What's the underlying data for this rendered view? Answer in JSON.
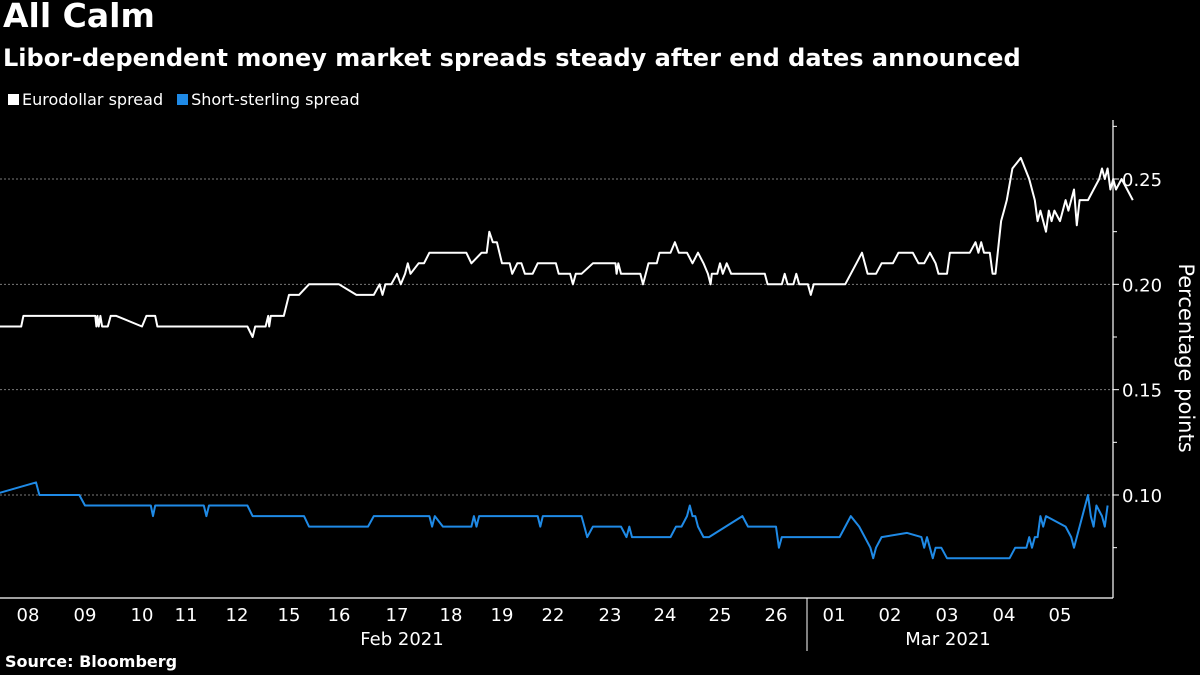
{
  "title": "All Calm",
  "subtitle": "Libor-dependent money market spreads steady after end dates announced",
  "source": "Source: Bloomberg",
  "colors": {
    "background": "#000000",
    "eurodollar": "#ffffff",
    "sterling": "#1f8ae6",
    "grid": "#888888"
  },
  "chart_data": {
    "type": "line",
    "title": "All Calm",
    "subtitle": "Libor-dependent money market spreads steady after end dates announced",
    "xlabel": "",
    "ylabel": "Percentage points",
    "ylim": [
      0.045,
      0.275
    ],
    "y_ticks": [
      0.1,
      0.15,
      0.2,
      0.25
    ],
    "y_tick_labels": [
      "0.10",
      "0.15",
      "0.20",
      "0.25"
    ],
    "y_axis_side": "right",
    "grid": "horizontal dotted",
    "legend": {
      "placement": "top-left",
      "entries": [
        "Eurodollar spread",
        "Short-sterling spread"
      ]
    },
    "x_tick_labels": [
      "08",
      "09",
      "10",
      "11",
      "12",
      "15",
      "16",
      "17",
      "18",
      "19",
      "22",
      "23",
      "24",
      "25",
      "26",
      "01",
      "02",
      "03",
      "04",
      "05"
    ],
    "x_groups": [
      {
        "label": "Feb 2021",
        "from": 0,
        "to": 14
      },
      {
        "label": "Mar 2021",
        "from": 15,
        "to": 19
      }
    ],
    "x_note": "x values are trading-day index: 0 = Feb 08 ... 14 = Feb 26, 15 = Mar 01 ... 19 = Mar 05",
    "series": [
      {
        "name": "Eurodollar spread",
        "color": "#ffffff",
        "points": [
          [
            -0.5,
            0.18
          ],
          [
            -0.12,
            0.18
          ],
          [
            -0.08,
            0.185
          ],
          [
            1.0,
            0.185
          ],
          [
            1.18,
            0.185
          ],
          [
            1.2,
            0.18
          ],
          [
            1.22,
            0.185
          ],
          [
            1.24,
            0.18
          ],
          [
            1.27,
            0.185
          ],
          [
            1.3,
            0.18
          ],
          [
            1.4,
            0.18
          ],
          [
            1.45,
            0.185
          ],
          [
            1.55,
            0.185
          ],
          [
            2.0,
            0.18
          ],
          [
            2.1,
            0.185
          ],
          [
            2.3,
            0.185
          ],
          [
            2.35,
            0.18
          ],
          [
            4.2,
            0.18
          ],
          [
            4.3,
            0.175
          ],
          [
            4.35,
            0.18
          ],
          [
            4.55,
            0.18
          ],
          [
            4.6,
            0.185
          ],
          [
            4.62,
            0.18
          ],
          [
            4.65,
            0.185
          ],
          [
            4.9,
            0.185
          ],
          [
            5.0,
            0.195
          ],
          [
            5.2,
            0.195
          ],
          [
            5.4,
            0.2
          ],
          [
            6.0,
            0.2
          ],
          [
            6.3,
            0.195
          ],
          [
            6.6,
            0.195
          ],
          [
            6.7,
            0.2
          ],
          [
            6.75,
            0.195
          ],
          [
            6.8,
            0.2
          ],
          [
            6.9,
            0.2
          ],
          [
            7.0,
            0.205
          ],
          [
            7.07,
            0.2
          ],
          [
            7.15,
            0.205
          ],
          [
            7.2,
            0.21
          ],
          [
            7.25,
            0.205
          ],
          [
            7.4,
            0.21
          ],
          [
            7.5,
            0.21
          ],
          [
            7.6,
            0.215
          ],
          [
            8.3,
            0.215
          ],
          [
            8.4,
            0.21
          ],
          [
            8.6,
            0.215
          ],
          [
            8.7,
            0.215
          ],
          [
            8.75,
            0.225
          ],
          [
            8.82,
            0.22
          ],
          [
            8.9,
            0.22
          ],
          [
            9.0,
            0.21
          ],
          [
            9.15,
            0.21
          ],
          [
            9.2,
            0.205
          ],
          [
            9.3,
            0.21
          ],
          [
            9.38,
            0.21
          ],
          [
            9.45,
            0.205
          ],
          [
            9.6,
            0.205
          ],
          [
            9.7,
            0.21
          ],
          [
            10.05,
            0.21
          ],
          [
            10.1,
            0.205
          ],
          [
            10.15,
            0.205
          ],
          [
            10.3,
            0.205
          ],
          [
            10.35,
            0.2
          ],
          [
            10.4,
            0.205
          ],
          [
            10.5,
            0.205
          ],
          [
            10.7,
            0.21
          ],
          [
            11.1,
            0.21
          ],
          [
            11.12,
            0.205
          ],
          [
            11.15,
            0.21
          ],
          [
            11.2,
            0.205
          ],
          [
            11.55,
            0.205
          ],
          [
            11.6,
            0.2
          ],
          [
            11.65,
            0.205
          ],
          [
            11.7,
            0.21
          ],
          [
            11.85,
            0.21
          ],
          [
            11.9,
            0.215
          ],
          [
            12.1,
            0.215
          ],
          [
            12.18,
            0.22
          ],
          [
            12.25,
            0.215
          ],
          [
            12.4,
            0.215
          ],
          [
            12.5,
            0.21
          ],
          [
            12.6,
            0.215
          ],
          [
            12.7,
            0.21
          ],
          [
            12.78,
            0.205
          ],
          [
            12.83,
            0.2
          ],
          [
            12.85,
            0.205
          ],
          [
            12.95,
            0.205
          ],
          [
            13.0,
            0.21
          ],
          [
            13.05,
            0.205
          ],
          [
            13.12,
            0.21
          ],
          [
            13.2,
            0.205
          ],
          [
            13.8,
            0.205
          ],
          [
            13.85,
            0.2
          ],
          [
            14.0,
            0.2
          ],
          [
            14.1,
            0.2
          ],
          [
            14.15,
            0.205
          ],
          [
            14.2,
            0.2
          ],
          [
            14.3,
            0.2
          ],
          [
            14.35,
            0.205
          ],
          [
            14.4,
            0.2
          ],
          [
            14.55,
            0.2
          ],
          [
            14.6,
            0.195
          ],
          [
            14.65,
            0.2
          ],
          [
            15.2,
            0.2
          ],
          [
            15.3,
            0.205
          ],
          [
            15.4,
            0.21
          ],
          [
            15.5,
            0.215
          ],
          [
            15.55,
            0.21
          ],
          [
            15.6,
            0.205
          ],
          [
            15.75,
            0.205
          ],
          [
            15.85,
            0.21
          ],
          [
            16.05,
            0.21
          ],
          [
            16.15,
            0.215
          ],
          [
            16.4,
            0.215
          ],
          [
            16.5,
            0.21
          ],
          [
            16.6,
            0.21
          ],
          [
            16.7,
            0.215
          ],
          [
            16.8,
            0.21
          ],
          [
            16.85,
            0.205
          ],
          [
            17.0,
            0.205
          ],
          [
            17.05,
            0.215
          ],
          [
            17.2,
            0.215
          ],
          [
            17.4,
            0.215
          ],
          [
            17.5,
            0.22
          ],
          [
            17.55,
            0.215
          ],
          [
            17.6,
            0.22
          ],
          [
            17.65,
            0.215
          ],
          [
            17.75,
            0.215
          ],
          [
            17.8,
            0.205
          ],
          [
            17.85,
            0.205
          ],
          [
            17.95,
            0.23
          ],
          [
            18.0,
            0.235
          ],
          [
            18.05,
            0.24
          ],
          [
            18.15,
            0.255
          ],
          [
            18.3,
            0.26
          ],
          [
            18.45,
            0.25
          ],
          [
            18.55,
            0.24
          ],
          [
            18.6,
            0.23
          ],
          [
            18.65,
            0.235
          ],
          [
            18.7,
            0.23
          ],
          [
            18.75,
            0.225
          ],
          [
            18.8,
            0.235
          ],
          [
            18.85,
            0.23
          ],
          [
            18.9,
            0.235
          ],
          [
            19.0,
            0.23
          ],
          [
            19.05,
            0.235
          ],
          [
            19.1,
            0.24
          ],
          [
            19.15,
            0.235
          ],
          [
            19.2,
            0.24
          ],
          [
            19.25,
            0.245
          ],
          [
            19.3,
            0.228
          ],
          [
            19.35,
            0.24
          ],
          [
            19.5,
            0.24
          ],
          [
            19.6,
            0.245
          ],
          [
            19.7,
            0.25
          ],
          [
            19.75,
            0.255
          ],
          [
            19.8,
            0.25
          ],
          [
            19.85,
            0.255
          ],
          [
            19.9,
            0.245
          ],
          [
            19.95,
            0.25
          ],
          [
            20.0,
            0.245
          ],
          [
            20.1,
            0.25
          ],
          [
            20.2,
            0.245
          ],
          [
            20.3,
            0.24
          ]
        ]
      },
      {
        "name": "Short-sterling spread",
        "color": "#1f8ae6",
        "points": [
          [
            -0.5,
            0.101
          ],
          [
            0.14,
            0.106
          ],
          [
            0.2,
            0.1
          ],
          [
            0.9,
            0.1
          ],
          [
            1.0,
            0.095
          ],
          [
            2.2,
            0.095
          ],
          [
            2.25,
            0.09
          ],
          [
            2.3,
            0.095
          ],
          [
            3.35,
            0.095
          ],
          [
            3.4,
            0.09
          ],
          [
            3.45,
            0.095
          ],
          [
            4.2,
            0.095
          ],
          [
            4.3,
            0.09
          ],
          [
            5.3,
            0.09
          ],
          [
            5.4,
            0.085
          ],
          [
            6.5,
            0.085
          ],
          [
            6.6,
            0.09
          ],
          [
            7.6,
            0.09
          ],
          [
            7.65,
            0.085
          ],
          [
            7.7,
            0.09
          ],
          [
            7.85,
            0.085
          ],
          [
            8.4,
            0.085
          ],
          [
            8.45,
            0.09
          ],
          [
            8.5,
            0.085
          ],
          [
            8.55,
            0.09
          ],
          [
            9.7,
            0.09
          ],
          [
            9.75,
            0.085
          ],
          [
            9.8,
            0.09
          ],
          [
            10.5,
            0.09
          ],
          [
            10.55,
            0.085
          ],
          [
            10.6,
            0.08
          ],
          [
            10.7,
            0.085
          ],
          [
            11.1,
            0.085
          ],
          [
            11.2,
            0.085
          ],
          [
            11.3,
            0.08
          ],
          [
            11.35,
            0.085
          ],
          [
            11.4,
            0.08
          ],
          [
            12.1,
            0.08
          ],
          [
            12.2,
            0.085
          ],
          [
            12.3,
            0.085
          ],
          [
            12.4,
            0.09
          ],
          [
            12.45,
            0.095
          ],
          [
            12.5,
            0.09
          ],
          [
            12.55,
            0.09
          ],
          [
            12.6,
            0.085
          ],
          [
            12.7,
            0.08
          ],
          [
            12.8,
            0.08
          ],
          [
            13.4,
            0.09
          ],
          [
            13.5,
            0.085
          ],
          [
            14.0,
            0.085
          ],
          [
            14.05,
            0.075
          ],
          [
            14.1,
            0.08
          ],
          [
            15.1,
            0.08
          ],
          [
            15.2,
            0.085
          ],
          [
            15.3,
            0.09
          ],
          [
            15.45,
            0.085
          ],
          [
            15.55,
            0.08
          ],
          [
            15.65,
            0.075
          ],
          [
            15.7,
            0.07
          ],
          [
            15.75,
            0.075
          ],
          [
            15.85,
            0.08
          ],
          [
            16.3,
            0.082
          ],
          [
            16.55,
            0.08
          ],
          [
            16.6,
            0.075
          ],
          [
            16.65,
            0.08
          ],
          [
            16.7,
            0.075
          ],
          [
            16.75,
            0.07
          ],
          [
            16.8,
            0.075
          ],
          [
            16.9,
            0.075
          ],
          [
            17.0,
            0.07
          ],
          [
            18.1,
            0.07
          ],
          [
            18.2,
            0.075
          ],
          [
            18.4,
            0.075
          ],
          [
            18.45,
            0.08
          ],
          [
            18.5,
            0.075
          ],
          [
            18.55,
            0.08
          ],
          [
            18.6,
            0.08
          ],
          [
            18.65,
            0.09
          ],
          [
            18.7,
            0.085
          ],
          [
            18.75,
            0.09
          ],
          [
            19.1,
            0.085
          ],
          [
            19.2,
            0.08
          ],
          [
            19.25,
            0.075
          ],
          [
            19.3,
            0.08
          ],
          [
            19.45,
            0.095
          ],
          [
            19.5,
            0.1
          ],
          [
            19.55,
            0.09
          ],
          [
            19.6,
            0.085
          ],
          [
            19.65,
            0.095
          ],
          [
            19.75,
            0.09
          ],
          [
            19.8,
            0.085
          ],
          [
            19.85,
            0.095
          ]
        ]
      }
    ]
  }
}
